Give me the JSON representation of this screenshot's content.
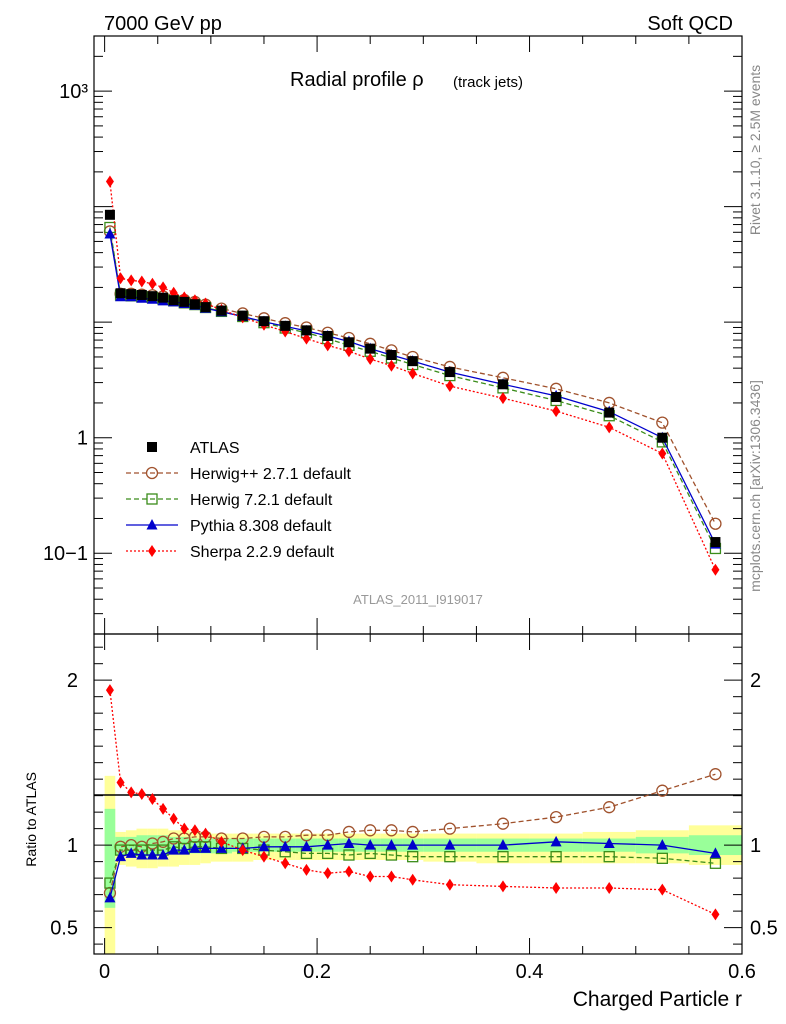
{
  "header": {
    "left": "7000 GeV pp",
    "right": "Soft QCD"
  },
  "side_text": {
    "rivet": "Rivet 3.1.10, ≥ 2.5M events",
    "mcplots": "mcplots.cern.ch [arXiv:1306.3436]"
  },
  "analysis_label": "ATLAS_2011_I919017",
  "colors": {
    "atlas": "#000000",
    "herwigpp": "#a0522d",
    "herwig7": "#3a8c1a",
    "pythia": "#0000cc",
    "sherpa": "#ff0000",
    "band_inner": "#99ff99",
    "band_outer": "#ffff99"
  },
  "chart_data": [
    {
      "type": "line",
      "title": "Radial profile ρ",
      "title_suffix": "(track jets)",
      "xlabel": "Charged Particle r",
      "ylabel": "",
      "y_scale": "log",
      "xlim": [
        -0.01,
        0.6
      ],
      "ylim": [
        0.02,
        3000
      ],
      "ytick_labels": [
        "10−1",
        "1",
        "10³"
      ],
      "legend_position": "left",
      "x": [
        0.005,
        0.015,
        0.025,
        0.035,
        0.045,
        0.055,
        0.065,
        0.075,
        0.085,
        0.095,
        0.11,
        0.13,
        0.15,
        0.17,
        0.19,
        0.21,
        0.23,
        0.25,
        0.27,
        0.29,
        0.325,
        0.375,
        0.425,
        0.475,
        0.525,
        0.575
      ],
      "series": [
        {
          "name": "ATLAS",
          "style": "data",
          "values": [
            85,
            17.8,
            17.5,
            17.2,
            16.8,
            16.3,
            15.5,
            15.0,
            14.3,
            13.5,
            12.6,
            11.4,
            10.2,
            9.3,
            8.5,
            7.6,
            6.7,
            5.9,
            5.2,
            4.6,
            3.7,
            2.9,
            2.25,
            1.65,
            1.0,
            0.125
          ]
        },
        {
          "name": "Herwig++ 2.7.1 default",
          "style": "herwigpp",
          "values": [
            61,
            17.6,
            17.6,
            17.3,
            17.1,
            16.7,
            16.1,
            15.6,
            15.0,
            14.2,
            13.1,
            11.9,
            10.8,
            9.8,
            9.0,
            8.1,
            7.3,
            6.5,
            5.7,
            5.0,
            4.1,
            3.3,
            2.65,
            2.0,
            1.35,
            0.18
          ]
        },
        {
          "name": "Herwig 7.2.1 default",
          "style": "herwig7",
          "values": [
            66,
            17.2,
            16.9,
            16.6,
            16.3,
            15.8,
            15.3,
            14.7,
            14.2,
            13.4,
            12.4,
            11.2,
            9.9,
            8.9,
            8.1,
            7.2,
            6.3,
            5.6,
            4.9,
            4.3,
            3.45,
            2.7,
            2.1,
            1.55,
            0.92,
            0.11
          ]
        },
        {
          "name": "Pythia 8.308 default",
          "style": "pythia",
          "values": [
            58,
            16.6,
            16.6,
            16.1,
            15.8,
            15.3,
            15.0,
            14.5,
            14.0,
            13.2,
            12.3,
            11.2,
            10.1,
            9.2,
            8.4,
            7.6,
            6.8,
            5.9,
            5.2,
            4.6,
            3.7,
            2.9,
            2.3,
            1.68,
            1.0,
            0.12
          ]
        },
        {
          "name": "Sherpa 2.2.9 default",
          "style": "sherpa",
          "values": [
            165,
            24.0,
            23.0,
            22.5,
            21.5,
            20.0,
            18.0,
            16.4,
            15.5,
            14.5,
            12.8,
            11.0,
            9.5,
            8.3,
            7.2,
            6.3,
            5.6,
            4.8,
            4.2,
            3.6,
            2.8,
            2.2,
            1.7,
            1.23,
            0.73,
            0.072
          ]
        }
      ]
    },
    {
      "type": "line",
      "title": "",
      "xlabel": "Charged Particle r",
      "ylabel": "Ratio to ATLAS",
      "xlim": [
        -0.01,
        0.6
      ],
      "ylim": [
        0.34,
        2.28
      ],
      "xtick_labels": [
        "0",
        "0.2",
        "0.4",
        "0.6"
      ],
      "ytick_labels": [
        "0.5",
        "1",
        "2"
      ],
      "x": [
        0.005,
        0.015,
        0.025,
        0.035,
        0.045,
        0.055,
        0.065,
        0.075,
        0.085,
        0.095,
        0.11,
        0.13,
        0.15,
        0.17,
        0.19,
        0.21,
        0.23,
        0.25,
        0.27,
        0.29,
        0.325,
        0.375,
        0.425,
        0.475,
        0.525,
        0.575
      ],
      "bands": {
        "x_edges": [
          0.0,
          0.01,
          0.02,
          0.03,
          0.04,
          0.05,
          0.06,
          0.07,
          0.08,
          0.09,
          0.1,
          0.12,
          0.14,
          0.16,
          0.18,
          0.2,
          0.22,
          0.24,
          0.26,
          0.28,
          0.3,
          0.35,
          0.4,
          0.45,
          0.5,
          0.55,
          0.6
        ],
        "inner_lo": [
          0.62,
          0.94,
          0.94,
          0.93,
          0.93,
          0.94,
          0.95,
          0.95,
          0.95,
          0.95,
          0.95,
          0.96,
          0.96,
          0.96,
          0.96,
          0.96,
          0.96,
          0.96,
          0.96,
          0.96,
          0.96,
          0.96,
          0.96,
          0.96,
          0.95,
          0.94
        ],
        "inner_hi": [
          1.22,
          1.05,
          1.05,
          1.06,
          1.06,
          1.06,
          1.05,
          1.05,
          1.04,
          1.04,
          1.04,
          1.04,
          1.04,
          1.04,
          1.04,
          1.04,
          1.04,
          1.04,
          1.04,
          1.04,
          1.04,
          1.04,
          1.04,
          1.04,
          1.05,
          1.06
        ],
        "outer_lo": [
          0.34,
          0.88,
          0.87,
          0.86,
          0.86,
          0.87,
          0.87,
          0.88,
          0.88,
          0.89,
          0.9,
          0.9,
          0.91,
          0.91,
          0.91,
          0.91,
          0.91,
          0.91,
          0.91,
          0.91,
          0.9,
          0.89,
          0.89,
          0.89,
          0.89,
          0.88
        ],
        "outer_hi": [
          1.42,
          1.08,
          1.09,
          1.1,
          1.1,
          1.1,
          1.09,
          1.09,
          1.08,
          1.08,
          1.07,
          1.07,
          1.07,
          1.07,
          1.07,
          1.07,
          1.07,
          1.07,
          1.07,
          1.07,
          1.07,
          1.07,
          1.07,
          1.08,
          1.09,
          1.12
        ]
      },
      "series": [
        {
          "name": "Herwig++ 2.7.1 default",
          "style": "herwigpp",
          "values": [
            0.71,
            0.99,
            1.0,
            0.99,
            1.01,
            1.02,
            1.04,
            1.04,
            1.05,
            1.05,
            1.04,
            1.04,
            1.05,
            1.05,
            1.06,
            1.06,
            1.08,
            1.09,
            1.09,
            1.08,
            1.1,
            1.13,
            1.17,
            1.23,
            1.33,
            1.43
          ]
        },
        {
          "name": "Herwig 7.2.1 default",
          "style": "herwig7",
          "values": [
            0.77,
            0.97,
            0.97,
            0.97,
            0.97,
            0.97,
            0.99,
            0.98,
            0.99,
            0.99,
            0.98,
            0.98,
            0.97,
            0.96,
            0.95,
            0.95,
            0.94,
            0.95,
            0.94,
            0.93,
            0.93,
            0.93,
            0.93,
            0.93,
            0.92,
            0.89
          ]
        },
        {
          "name": "Pythia 8.308 default",
          "style": "pythia",
          "values": [
            0.68,
            0.93,
            0.95,
            0.94,
            0.94,
            0.94,
            0.97,
            0.97,
            0.98,
            0.98,
            0.98,
            0.98,
            0.99,
            0.99,
            0.99,
            1.0,
            1.01,
            1.0,
            1.0,
            1.0,
            1.0,
            1.0,
            1.02,
            1.01,
            1.0,
            0.95
          ]
        },
        {
          "name": "Sherpa 2.2.9 default",
          "style": "sherpa",
          "values": [
            1.94,
            1.38,
            1.32,
            1.31,
            1.28,
            1.22,
            1.16,
            1.1,
            1.09,
            1.07,
            1.02,
            0.97,
            0.93,
            0.89,
            0.85,
            0.83,
            0.84,
            0.81,
            0.81,
            0.79,
            0.76,
            0.75,
            0.74,
            0.74,
            0.73,
            0.58
          ]
        }
      ]
    }
  ]
}
